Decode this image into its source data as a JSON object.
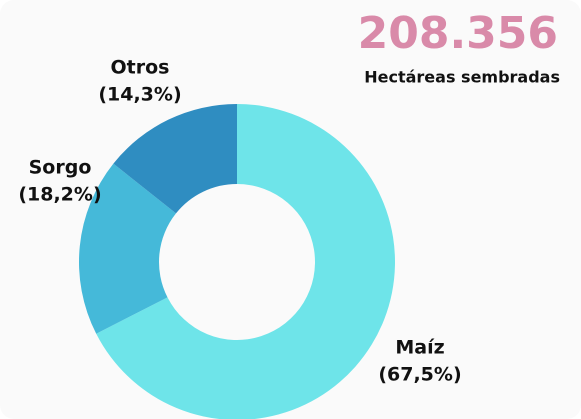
{
  "chart_data": {
    "type": "donut",
    "headline": "208.356",
    "subtitle": "Hectáreas sembradas",
    "categories": [
      "Maíz",
      "Sorgo",
      "Otros"
    ],
    "values": [
      67.5,
      18.2,
      14.3
    ],
    "value_labels": [
      "(67,5%)",
      "(18,2%)",
      "(14,3%)"
    ],
    "colors": [
      "#6ee4e9",
      "#45b9d9",
      "#2f8dc1"
    ]
  }
}
